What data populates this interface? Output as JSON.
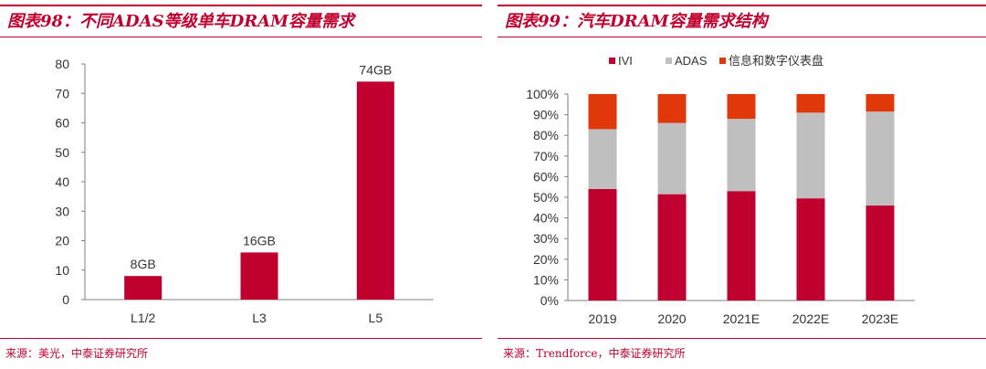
{
  "left_panel": {
    "title": "图表98：不同ADAS等级单车DRAM容量需求",
    "source": "来源：美光，中泰证券研究所"
  },
  "right_panel": {
    "title": "图表99：汽车DRAM容量需求结构",
    "source": "来源：Trendforce，中泰证券研究所"
  },
  "colors": {
    "accent": "#c0002f",
    "ivi": "#c0002f",
    "adas": "#bfbfbf",
    "info": "#e0380b"
  },
  "chart_data": [
    {
      "type": "bar",
      "title": "不同ADAS等级单车DRAM容量需求",
      "categories": [
        "L1/2",
        "L3",
        "L5"
      ],
      "values": [
        8,
        16,
        74
      ],
      "data_labels": [
        "8GB",
        "16GB",
        "74GB"
      ],
      "ylim": [
        0,
        80
      ],
      "yticks": [
        0,
        10,
        20,
        30,
        40,
        50,
        60,
        70,
        80
      ],
      "xlabel": "",
      "ylabel": "",
      "grid": false
    },
    {
      "type": "bar",
      "stacked": true,
      "title": "汽车DRAM容量需求结构",
      "categories": [
        "2019",
        "2020",
        "2021E",
        "2022E",
        "2023E"
      ],
      "series": [
        {
          "name": "IVI",
          "values": [
            54,
            51.5,
            53,
            49.5,
            46
          ]
        },
        {
          "name": "ADAS",
          "values": [
            29,
            34.5,
            35,
            41.5,
            45.5
          ]
        },
        {
          "name": "信息和数字仪表盘",
          "values": [
            17,
            14,
            12,
            9,
            8.5
          ]
        }
      ],
      "ylim": [
        0,
        100
      ],
      "yticks": [
        "0%",
        "10%",
        "20%",
        "30%",
        "40%",
        "50%",
        "60%",
        "70%",
        "80%",
        "90%",
        "100%"
      ],
      "legend_position": "top",
      "grid": false
    }
  ]
}
